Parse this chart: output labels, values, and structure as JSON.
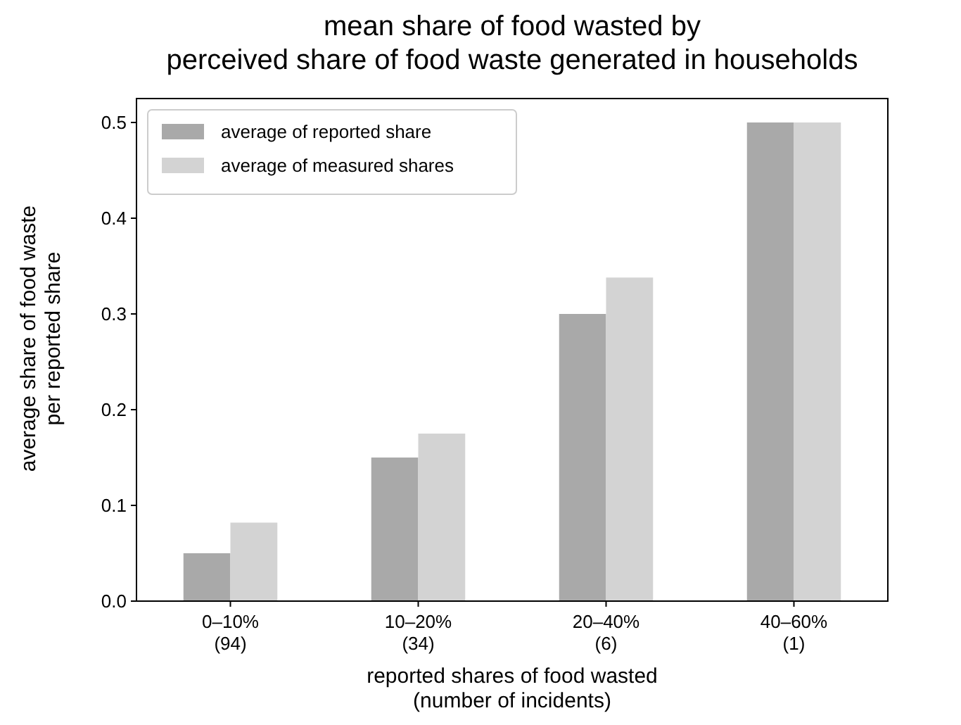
{
  "chart_data": {
    "type": "bar",
    "title": "mean share of food wasted by\nperceived share of food waste generated in households",
    "xlabel": "reported shares of food wasted\n(number of incidents)",
    "ylabel": "average share of food waste\nper reported share",
    "categories": [
      "0–10%\n(94)",
      "10–20%\n(34)",
      "20–40%\n(6)",
      "40–60%\n(1)"
    ],
    "series": [
      {
        "name": "average of reported share",
        "color": "#a9a9a9",
        "values": [
          0.05,
          0.15,
          0.3,
          0.5
        ]
      },
      {
        "name": "average of measured shares",
        "color": "#d3d3d3",
        "values": [
          0.082,
          0.175,
          0.338,
          0.5
        ]
      }
    ],
    "ylim": [
      0,
      0.525
    ],
    "yticks": [
      {
        "value": 0,
        "label": "0.0"
      },
      {
        "value": 0.1,
        "label": "0.1"
      },
      {
        "value": 0.2,
        "label": "0.2"
      },
      {
        "value": 0.3,
        "label": "0.3"
      },
      {
        "value": 0.4,
        "label": "0.4"
      },
      {
        "value": 0.5,
        "label": "0.5"
      }
    ],
    "grid": false,
    "legend": "top left"
  }
}
